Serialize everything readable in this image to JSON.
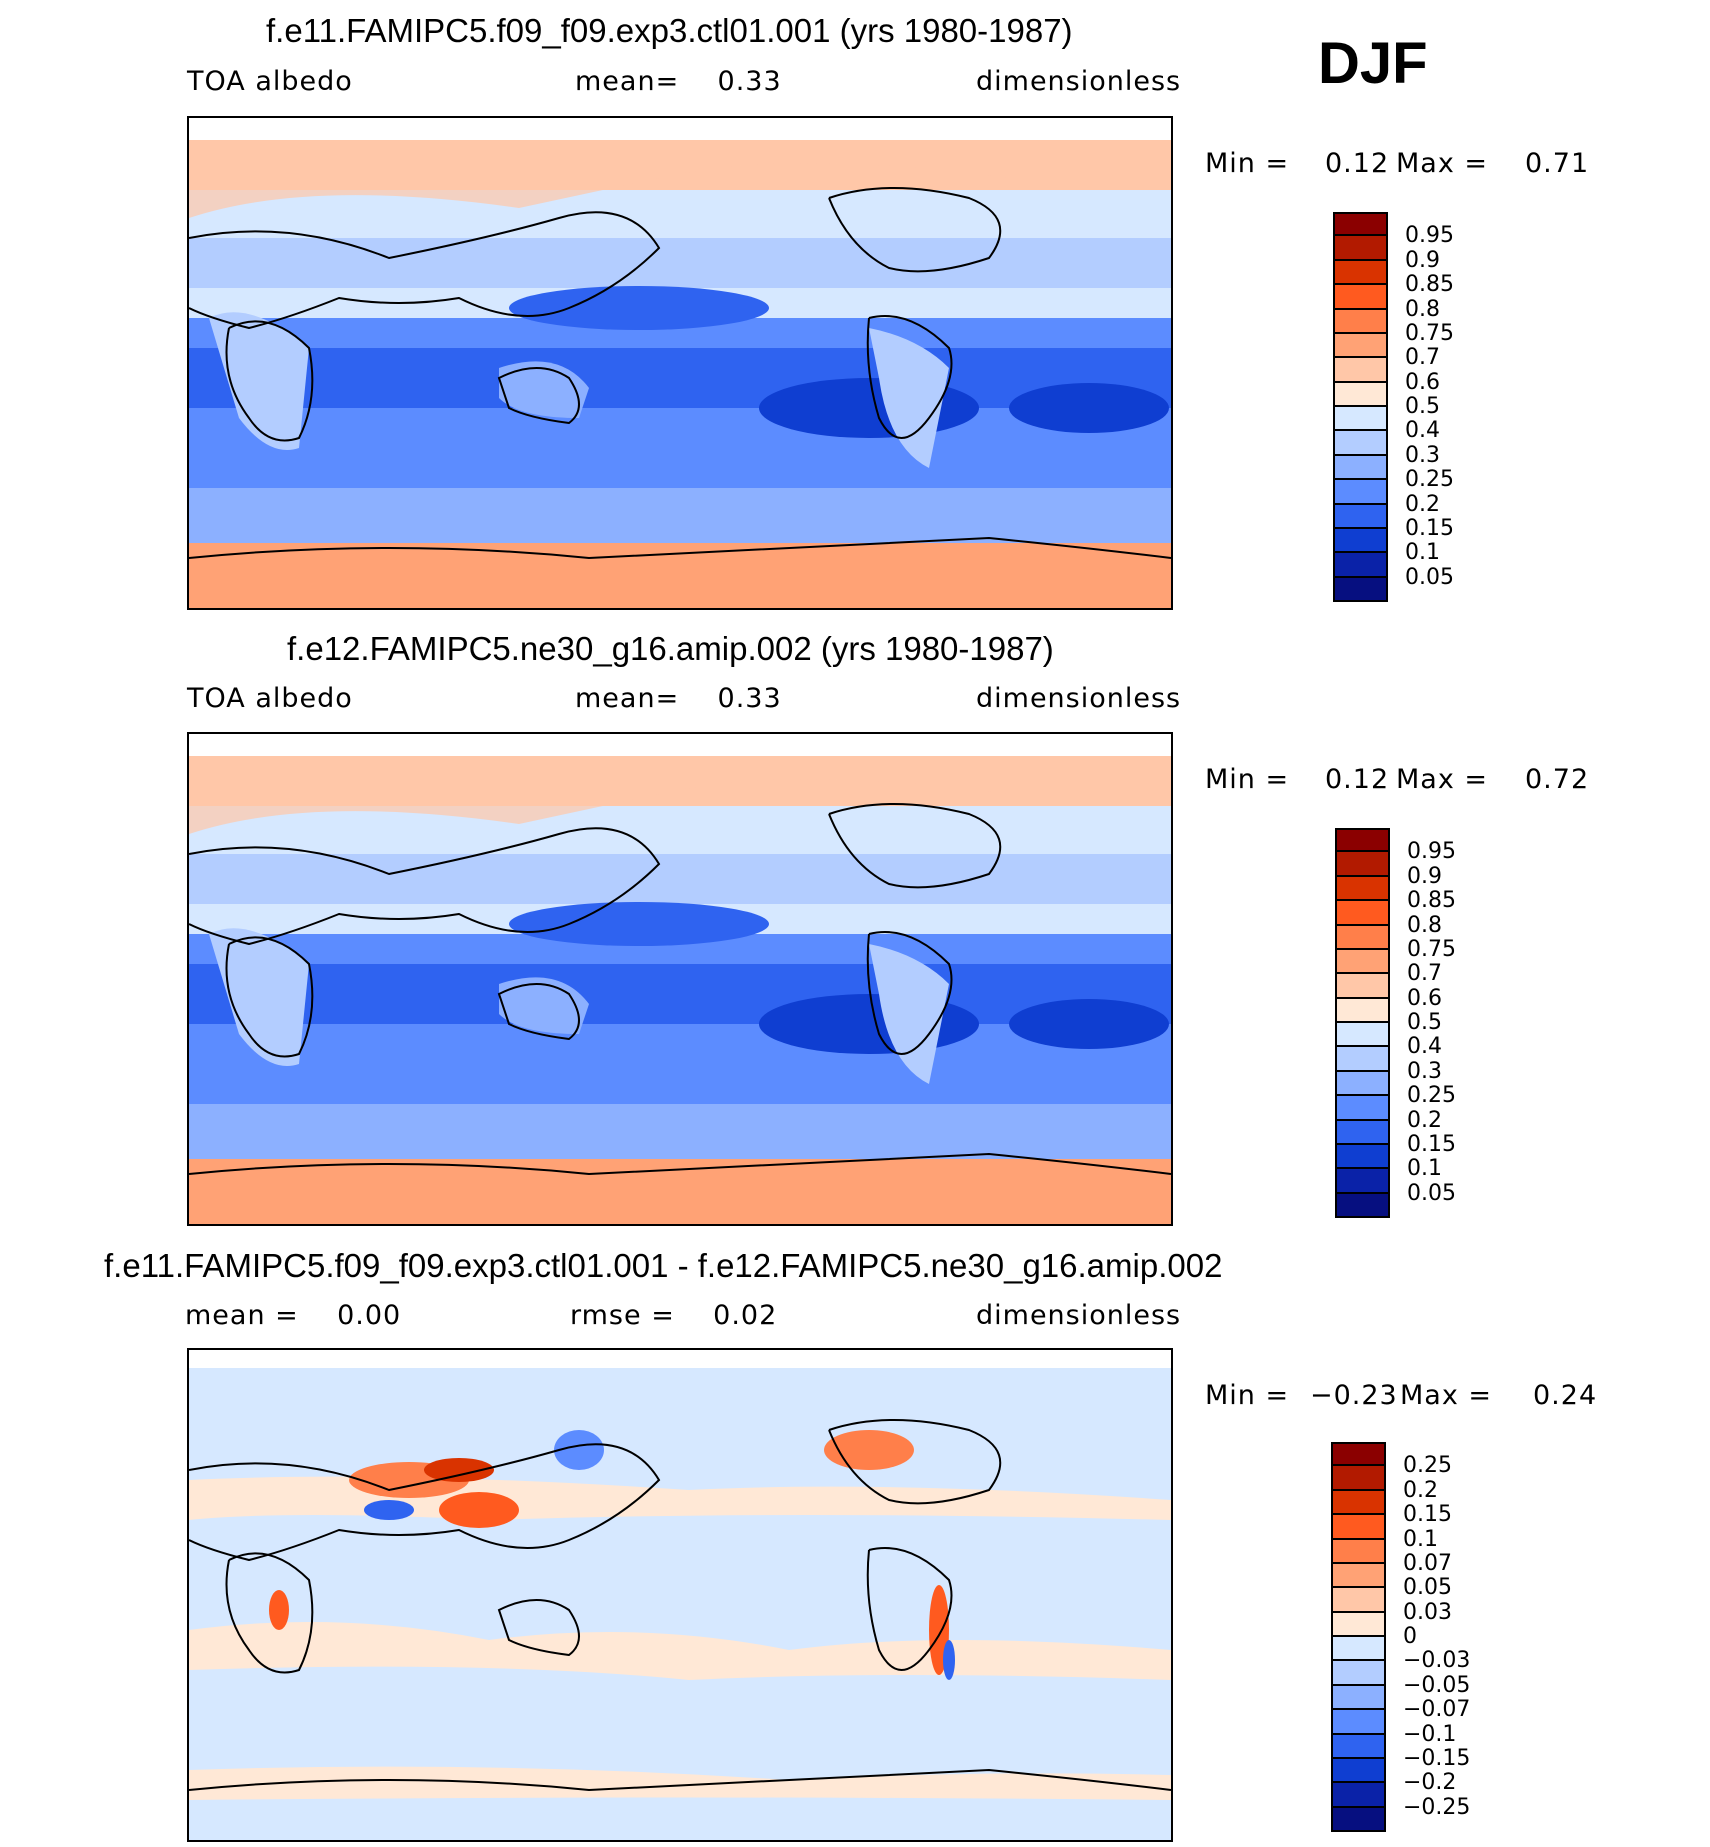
{
  "season": "DJF",
  "panels": [
    {
      "title": "f.e11.FAMIPC5.f09_f09.exp3.ctl01.001 (yrs 1980-1987)",
      "left_label": "TOA albedo",
      "center_label": "mean=    0.33",
      "right_label": "dimensionless",
      "min_label": "Min =",
      "min_value": "0.12",
      "max_label": "Max =",
      "max_value": "0.71",
      "colorbar_labels": [
        "0.95",
        "0.9",
        "0.85",
        "0.8",
        "0.75",
        "0.7",
        "0.6",
        "0.5",
        "0.4",
        "0.3",
        "0.25",
        "0.2",
        "0.15",
        "0.1",
        "0.05"
      ],
      "colors": [
        "#8b0000",
        "#b21a00",
        "#d93300",
        "#ff5a1f",
        "#ff7f4a",
        "#ffa275",
        "#ffc7a8",
        "#ffe8d6",
        "#d6e8ff",
        "#b3cdff",
        "#8cb0ff",
        "#5c8cff",
        "#2f63f0",
        "#0f3ed1",
        "#0a22a8",
        "#060f80"
      ]
    },
    {
      "title": "f.e12.FAMIPC5.ne30_g16.amip.002 (yrs 1980-1987)",
      "left_label": "TOA albedo",
      "center_label": "mean=    0.33",
      "right_label": "dimensionless",
      "min_label": "Min =",
      "min_value": "0.12",
      "max_label": "Max =",
      "max_value": "0.72",
      "colorbar_labels": [
        "0.95",
        "0.9",
        "0.85",
        "0.8",
        "0.75",
        "0.7",
        "0.6",
        "0.5",
        "0.4",
        "0.3",
        "0.25",
        "0.2",
        "0.15",
        "0.1",
        "0.05"
      ],
      "colors": [
        "#8b0000",
        "#b21a00",
        "#d93300",
        "#ff5a1f",
        "#ff7f4a",
        "#ffa275",
        "#ffc7a8",
        "#ffe8d6",
        "#d6e8ff",
        "#b3cdff",
        "#8cb0ff",
        "#5c8cff",
        "#2f63f0",
        "#0f3ed1",
        "#0a22a8",
        "#060f80"
      ]
    },
    {
      "title": "f.e11.FAMIPC5.f09_f09.exp3.ctl01.001 - f.e12.FAMIPC5.ne30_g16.amip.002",
      "left_label": "mean =    0.00",
      "center_label": "rmse =    0.02",
      "right_label": "dimensionless",
      "min_label": "Min =",
      "min_value": "−0.23",
      "max_label": "Max =",
      "max_value": "0.24",
      "colorbar_labels": [
        "0.25",
        "0.2",
        "0.15",
        "0.1",
        "0.07",
        "0.05",
        "0.03",
        "0",
        "−0.03",
        "−0.05",
        "−0.07",
        "−0.1",
        "−0.15",
        "−0.2",
        "−0.25"
      ],
      "colors": [
        "#8b0000",
        "#b21a00",
        "#d93300",
        "#ff5a1f",
        "#ff7f4a",
        "#ffa275",
        "#ffc7a8",
        "#ffe8d6",
        "#d6e8ff",
        "#b3cdff",
        "#8cb0ff",
        "#5c8cff",
        "#2f63f0",
        "#0f3ed1",
        "#0a22a8",
        "#060f80"
      ]
    }
  ]
}
